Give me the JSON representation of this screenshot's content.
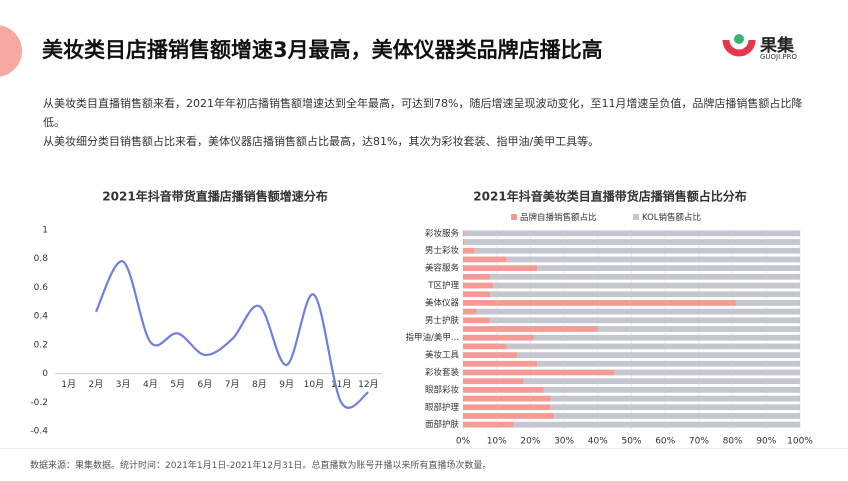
{
  "header": {
    "title": "美妆类目店播销售额增速3月最高，美体仪器类品牌店播比高",
    "logo": "果集",
    "logo_sub": "GUOJI.PRO"
  },
  "paragraphs": [
    "从美妆类目直播销售额来看，2021年年初店播销售额增速达到全年最高，可达到78%，随后增速呈现波动变化，至11月增速呈负值，品牌店播销售额占比降低。",
    "从美妆细分类目销售额占比来看，美体仪器店播销售额占比最高，达81%，其次为彩妆套装、指甲油/美甲工具等。"
  ],
  "source": "数据来源：果集数据。统计时间：2021年1月1日-2021年12月31日。总直播数为账号开播以来所有直播场次数量。",
  "chart_data": [
    {
      "type": "line",
      "title": "2021年抖音带货直播店播销售额增速分布",
      "categories": [
        "1月",
        "2月",
        "3月",
        "4月",
        "5月",
        "6月",
        "7月",
        "8月",
        "9月",
        "10月",
        "11月",
        "12月"
      ],
      "series": [
        {
          "name": "店播销售额增速",
          "color": "#6e7fe0",
          "values": [
            null,
            0.43,
            0.78,
            0.22,
            0.28,
            0.13,
            0.24,
            0.47,
            0.06,
            0.55,
            -0.2,
            -0.13
          ]
        }
      ],
      "ylim": [
        -0.4,
        1
      ],
      "yticks": [
        -0.4,
        -0.2,
        0,
        0.2,
        0.4,
        0.6,
        0.8,
        1
      ]
    },
    {
      "type": "stacked_barh",
      "title": "2021年抖音美妆类目直播带货店播销售额占比分布",
      "categories": [
        "彩妆服务",
        null,
        "男士彩妆",
        null,
        "美容服务",
        null,
        "T区护理",
        null,
        "美体仪器",
        null,
        "男士护肤",
        null,
        "指甲油/美甲...",
        null,
        "美妆工具",
        null,
        "彩妆套装",
        null,
        "眼部彩妆",
        null,
        "眼部护理",
        null,
        "面部护肤"
      ],
      "series": [
        {
          "name": "品牌自播销售额占比",
          "color": "#f59a94",
          "values": [
            0.5,
            0.5,
            3.5,
            13,
            22,
            8,
            9,
            8,
            81,
            4,
            8,
            40,
            21,
            13,
            16,
            22,
            45,
            18,
            24,
            26,
            26,
            27,
            15
          ]
        },
        {
          "name": "KOL销售额占比",
          "color": "#c4c6d0",
          "values": [
            99.5,
            99.5,
            96.5,
            87,
            78,
            92,
            91,
            92,
            19,
            96,
            92,
            60,
            79,
            87,
            84,
            78,
            55,
            82,
            76,
            74,
            74,
            73,
            85
          ]
        }
      ],
      "xlim": [
        0,
        100
      ],
      "xticks": [
        {
          "value": 0,
          "label": "0%"
        },
        {
          "value": 10,
          "label": "10%"
        },
        {
          "value": 20,
          "label": "20%"
        },
        {
          "value": 30,
          "label": "30%"
        },
        {
          "value": 40,
          "label": "40%"
        },
        {
          "value": 50,
          "label": "50%"
        },
        {
          "value": 60,
          "label": "60%"
        },
        {
          "value": 70,
          "label": "70%"
        },
        {
          "value": 80,
          "label": "80%"
        },
        {
          "value": 90,
          "label": "90%"
        },
        {
          "value": 100,
          "label": "100%"
        }
      ],
      "legend": "top"
    }
  ]
}
